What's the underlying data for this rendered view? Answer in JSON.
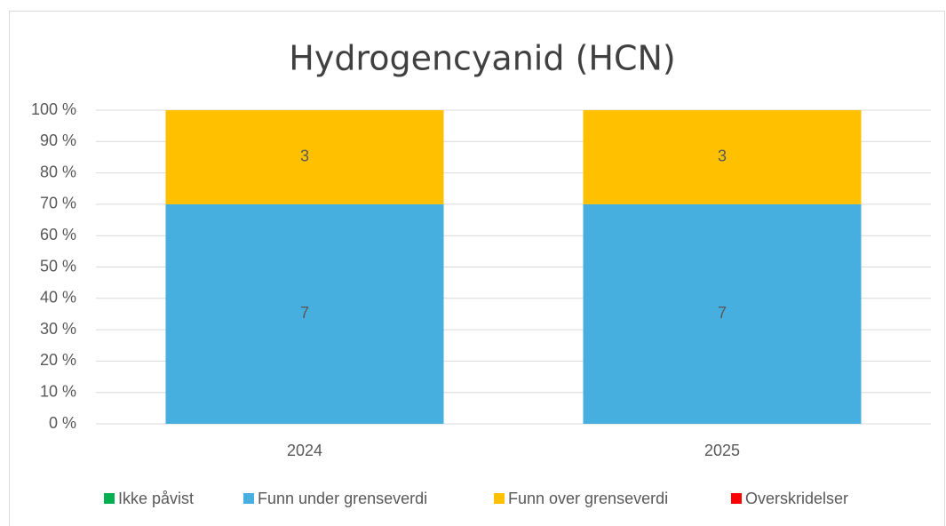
{
  "chart_data": {
    "type": "bar",
    "stacking": "percent",
    "title": "Hydrogencyanid (HCN)",
    "categories": [
      "2024",
      "2025"
    ],
    "series": [
      {
        "name": "Ikke påvist",
        "color": "#00b050",
        "values": [
          0,
          0
        ]
      },
      {
        "name": "Funn under grenseverdi",
        "color": "#47afe0",
        "values": [
          7,
          7
        ]
      },
      {
        "name": "Funn over grenseverdi",
        "color": "#ffc000",
        "values": [
          3,
          3
        ]
      },
      {
        "name": "Overskridelser",
        "color": "#ff0000",
        "values": [
          0,
          0
        ]
      }
    ],
    "ylim": [
      0,
      100
    ],
    "yticks": [
      {
        "value": 0,
        "label": "0 %"
      },
      {
        "value": 10,
        "label": "10 %"
      },
      {
        "value": 20,
        "label": "20 %"
      },
      {
        "value": 30,
        "label": "30 %"
      },
      {
        "value": 40,
        "label": "40 %"
      },
      {
        "value": 50,
        "label": "50 %"
      },
      {
        "value": 60,
        "label": "60 %"
      },
      {
        "value": 70,
        "label": "70 %"
      },
      {
        "value": 80,
        "label": "80 %"
      },
      {
        "value": 90,
        "label": "90 %"
      },
      {
        "value": 100,
        "label": "100 %"
      }
    ],
    "grid": true,
    "legend": "bottom"
  }
}
